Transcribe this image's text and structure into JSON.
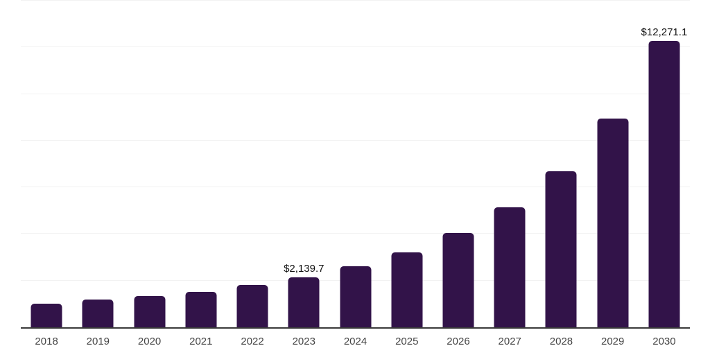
{
  "chart": {
    "background": "#ffffff",
    "bar_color": "#321349",
    "gridline_color": "#f2f2f2",
    "axis_color": "#3a3a3a",
    "value_label_color": "#111111",
    "tick_label_color": "#444444"
  },
  "chart_data": {
    "type": "bar",
    "title": "",
    "xlabel": "",
    "ylabel": "",
    "categories": [
      "2018",
      "2019",
      "2020",
      "2021",
      "2022",
      "2023",
      "2024",
      "2025",
      "2026",
      "2027",
      "2028",
      "2029",
      "2030"
    ],
    "values": [
      1020,
      1180,
      1330,
      1525,
      1820,
      2139.7,
      2615,
      3205,
      4045,
      5145,
      6700,
      8960,
      12271.1
    ],
    "data_labels": [
      "",
      "",
      "",
      "",
      "",
      "$2,139.7",
      "",
      "",
      "",
      "",
      "",
      "",
      "$12,271.1"
    ],
    "ylim": [
      0,
      14000
    ],
    "gridline_step": 2000,
    "grid": "horizontal",
    "y_axis_labels_visible": false,
    "legend_position": "none"
  }
}
